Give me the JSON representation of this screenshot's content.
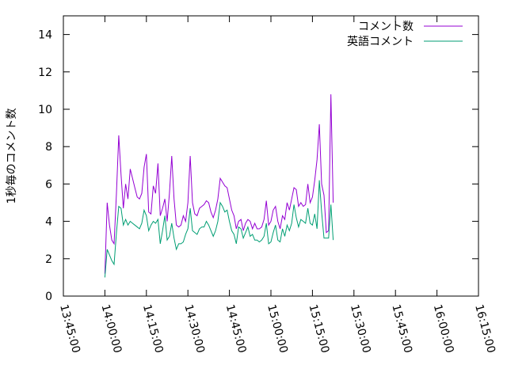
{
  "chart_data": {
    "type": "line",
    "title": "",
    "xlabel": "",
    "ylabel": "1秒毎のコメント数",
    "ylim": [
      0,
      15
    ],
    "yticks": [
      0,
      2,
      4,
      6,
      8,
      10,
      12,
      14
    ],
    "xlim": [
      "13:45:00",
      "16:15:00"
    ],
    "xticks": [
      "13:45:00",
      "14:00:00",
      "14:15:00",
      "14:30:00",
      "14:45:00",
      "15:00:00",
      "15:15:00",
      "15:30:00",
      "15:45:00",
      "16:00:00",
      "16:15:00"
    ],
    "grid": false,
    "legend_position": "top-right",
    "series": [
      {
        "name": "コメント数",
        "color": "#9400d3",
        "points": [
          [
            "14:00:00",
            1.2
          ],
          [
            "14:00:50",
            5.0
          ],
          [
            "14:01:40",
            3.8
          ],
          [
            "14:02:30",
            3.0
          ],
          [
            "14:03:20",
            2.8
          ],
          [
            "14:04:10",
            5.5
          ],
          [
            "14:05:00",
            8.6
          ],
          [
            "14:05:50",
            6.5
          ],
          [
            "14:06:40",
            4.7
          ],
          [
            "14:07:30",
            6.0
          ],
          [
            "14:08:20",
            5.2
          ],
          [
            "14:09:10",
            6.8
          ],
          [
            "14:10:00",
            6.3
          ],
          [
            "14:10:50",
            5.8
          ],
          [
            "14:11:40",
            5.3
          ],
          [
            "14:12:30",
            5.2
          ],
          [
            "14:13:20",
            5.5
          ],
          [
            "14:14:10",
            6.9
          ],
          [
            "14:15:00",
            7.6
          ],
          [
            "14:15:50",
            4.5
          ],
          [
            "14:16:40",
            4.4
          ],
          [
            "14:17:30",
            5.9
          ],
          [
            "14:18:20",
            5.5
          ],
          [
            "14:19:10",
            7.1
          ],
          [
            "14:20:00",
            4.3
          ],
          [
            "14:20:50",
            4.7
          ],
          [
            "14:21:40",
            5.2
          ],
          [
            "14:22:30",
            4.0
          ],
          [
            "14:23:20",
            5.5
          ],
          [
            "14:24:10",
            7.5
          ],
          [
            "14:25:00",
            5.2
          ],
          [
            "14:25:50",
            3.8
          ],
          [
            "14:26:40",
            3.7
          ],
          [
            "14:27:30",
            3.8
          ],
          [
            "14:28:20",
            4.3
          ],
          [
            "14:29:10",
            4.0
          ],
          [
            "14:30:00",
            5.0
          ],
          [
            "14:30:50",
            7.5
          ],
          [
            "14:31:40",
            5.0
          ],
          [
            "14:32:30",
            4.4
          ],
          [
            "14:33:20",
            4.3
          ],
          [
            "14:34:10",
            4.7
          ],
          [
            "14:35:00",
            4.8
          ],
          [
            "14:35:50",
            4.9
          ],
          [
            "14:36:40",
            5.1
          ],
          [
            "14:37:30",
            5.0
          ],
          [
            "14:38:20",
            4.5
          ],
          [
            "14:39:10",
            4.2
          ],
          [
            "14:40:00",
            4.6
          ],
          [
            "14:40:50",
            5.2
          ],
          [
            "14:41:40",
            6.3
          ],
          [
            "14:42:30",
            6.1
          ],
          [
            "14:43:20",
            5.9
          ],
          [
            "14:44:10",
            5.8
          ],
          [
            "14:45:00",
            5.2
          ],
          [
            "14:45:50",
            4.6
          ],
          [
            "14:46:40",
            4.3
          ],
          [
            "14:47:30",
            3.6
          ],
          [
            "14:48:20",
            4.0
          ],
          [
            "14:49:10",
            4.1
          ],
          [
            "14:50:00",
            3.5
          ],
          [
            "14:50:50",
            3.9
          ],
          [
            "14:51:40",
            4.1
          ],
          [
            "14:52:30",
            4.0
          ],
          [
            "14:53:20",
            3.6
          ],
          [
            "14:54:10",
            3.9
          ],
          [
            "14:55:00",
            3.6
          ],
          [
            "14:55:50",
            3.6
          ],
          [
            "14:56:40",
            3.7
          ],
          [
            "14:57:30",
            4.1
          ],
          [
            "14:58:20",
            5.1
          ],
          [
            "14:59:10",
            3.8
          ],
          [
            "15:00:00",
            4.0
          ],
          [
            "15:00:50",
            4.6
          ],
          [
            "15:01:40",
            4.8
          ],
          [
            "15:02:30",
            4.0
          ],
          [
            "15:03:20",
            3.6
          ],
          [
            "15:04:10",
            4.3
          ],
          [
            "15:05:00",
            4.1
          ],
          [
            "15:05:50",
            5.0
          ],
          [
            "15:06:40",
            4.6
          ],
          [
            "15:07:30",
            5.2
          ],
          [
            "15:08:20",
            5.8
          ],
          [
            "15:09:10",
            5.7
          ],
          [
            "15:10:00",
            4.8
          ],
          [
            "15:10:50",
            5.0
          ],
          [
            "15:11:40",
            4.8
          ],
          [
            "15:12:30",
            4.9
          ],
          [
            "15:13:20",
            6.0
          ],
          [
            "15:14:10",
            5.0
          ],
          [
            "15:15:00",
            5.3
          ],
          [
            "15:15:50",
            6.2
          ],
          [
            "15:16:40",
            7.3
          ],
          [
            "15:17:30",
            9.2
          ],
          [
            "15:18:20",
            6.0
          ],
          [
            "15:19:10",
            5.4
          ],
          [
            "15:20:00",
            3.4
          ],
          [
            "15:20:50",
            3.5
          ],
          [
            "15:21:40",
            10.8
          ],
          [
            "15:22:30",
            5.0
          ]
        ]
      },
      {
        "name": "英語コメント",
        "color": "#009e73",
        "points": [
          [
            "14:00:00",
            1.0
          ],
          [
            "14:00:50",
            2.5
          ],
          [
            "14:01:40",
            2.2
          ],
          [
            "14:02:30",
            1.9
          ],
          [
            "14:03:20",
            1.7
          ],
          [
            "14:04:10",
            3.4
          ],
          [
            "14:05:00",
            4.8
          ],
          [
            "14:05:50",
            4.7
          ],
          [
            "14:06:40",
            3.8
          ],
          [
            "14:07:30",
            4.1
          ],
          [
            "14:08:20",
            3.8
          ],
          [
            "14:09:10",
            4.0
          ],
          [
            "14:10:00",
            3.9
          ],
          [
            "14:10:50",
            3.8
          ],
          [
            "14:11:40",
            3.7
          ],
          [
            "14:12:30",
            3.6
          ],
          [
            "14:13:20",
            3.9
          ],
          [
            "14:14:10",
            4.6
          ],
          [
            "14:15:00",
            4.3
          ],
          [
            "14:15:50",
            3.5
          ],
          [
            "14:16:40",
            3.8
          ],
          [
            "14:17:30",
            4.0
          ],
          [
            "14:18:20",
            3.9
          ],
          [
            "14:19:10",
            4.1
          ],
          [
            "14:20:00",
            2.8
          ],
          [
            "14:20:50",
            3.5
          ],
          [
            "14:21:40",
            4.3
          ],
          [
            "14:22:30",
            3.0
          ],
          [
            "14:23:20",
            3.2
          ],
          [
            "14:24:10",
            3.9
          ],
          [
            "14:25:00",
            3.1
          ],
          [
            "14:25:50",
            2.5
          ],
          [
            "14:26:40",
            2.8
          ],
          [
            "14:27:30",
            2.8
          ],
          [
            "14:28:20",
            2.9
          ],
          [
            "14:29:10",
            3.3
          ],
          [
            "14:30:00",
            3.6
          ],
          [
            "14:30:50",
            4.7
          ],
          [
            "14:31:40",
            3.5
          ],
          [
            "14:32:30",
            3.4
          ],
          [
            "14:33:20",
            3.3
          ],
          [
            "14:34:10",
            3.6
          ],
          [
            "14:35:00",
            3.7
          ],
          [
            "14:35:50",
            3.7
          ],
          [
            "14:36:40",
            4.0
          ],
          [
            "14:37:30",
            3.8
          ],
          [
            "14:38:20",
            3.5
          ],
          [
            "14:39:10",
            3.2
          ],
          [
            "14:40:00",
            3.5
          ],
          [
            "14:40:50",
            4.0
          ],
          [
            "14:41:40",
            5.0
          ],
          [
            "14:42:30",
            4.8
          ],
          [
            "14:43:20",
            4.5
          ],
          [
            "14:44:10",
            4.6
          ],
          [
            "14:45:00",
            4.0
          ],
          [
            "14:45:50",
            3.5
          ],
          [
            "14:46:40",
            3.3
          ],
          [
            "14:47:30",
            2.8
          ],
          [
            "14:48:20",
            3.7
          ],
          [
            "14:49:10",
            3.6
          ],
          [
            "14:50:00",
            3.1
          ],
          [
            "14:50:50",
            3.4
          ],
          [
            "14:51:40",
            3.7
          ],
          [
            "14:52:30",
            3.2
          ],
          [
            "14:53:20",
            3.3
          ],
          [
            "14:54:10",
            3.0
          ],
          [
            "14:55:00",
            3.0
          ],
          [
            "14:55:50",
            2.9
          ],
          [
            "14:56:40",
            3.0
          ],
          [
            "14:57:30",
            3.2
          ],
          [
            "14:58:20",
            3.9
          ],
          [
            "14:59:10",
            2.8
          ],
          [
            "15:00:00",
            2.9
          ],
          [
            "15:00:50",
            3.4
          ],
          [
            "15:01:40",
            3.8
          ],
          [
            "15:02:30",
            3.0
          ],
          [
            "15:03:20",
            2.9
          ],
          [
            "15:04:10",
            3.6
          ],
          [
            "15:05:00",
            3.2
          ],
          [
            "15:05:50",
            3.8
          ],
          [
            "15:06:40",
            3.5
          ],
          [
            "15:07:30",
            3.9
          ],
          [
            "15:08:20",
            4.9
          ],
          [
            "15:09:10",
            4.2
          ],
          [
            "15:10:00",
            3.7
          ],
          [
            "15:10:50",
            4.1
          ],
          [
            "15:11:40",
            4.0
          ],
          [
            "15:12:30",
            3.9
          ],
          [
            "15:13:20",
            4.7
          ],
          [
            "15:14:10",
            3.9
          ],
          [
            "15:15:00",
            3.8
          ],
          [
            "15:15:50",
            4.4
          ],
          [
            "15:16:40",
            3.6
          ],
          [
            "15:17:30",
            6.2
          ],
          [
            "15:18:20",
            4.5
          ],
          [
            "15:19:10",
            3.1
          ],
          [
            "15:20:00",
            3.1
          ],
          [
            "15:20:50",
            3.1
          ],
          [
            "15:21:40",
            4.9
          ],
          [
            "15:22:30",
            3.0
          ]
        ]
      }
    ]
  }
}
